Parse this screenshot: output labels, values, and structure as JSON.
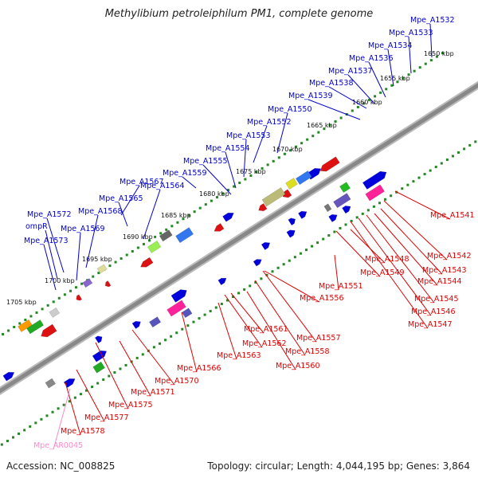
{
  "title": "Methylibium petroleiphilum PM1, complete genome",
  "footer": {
    "accession": "Accession: NC_008825",
    "topology": "Topology: circular; Length: 4,044,195 bp; Genes: 3,864"
  },
  "colors": {
    "forward_label": "#0000cc",
    "reverse_label": "#dd0000",
    "rna_label": "#ff88cc",
    "backbone": "#888888",
    "ticks": "#228822"
  },
  "ticks": [
    "1650 kbp",
    "1655 kbp",
    "1660 kbp",
    "1665 kbp",
    "1670 kbp",
    "1675 kbp",
    "1680 kbp",
    "1685 kbp",
    "1690 kbp",
    "1695 kbp",
    "1700 kbp",
    "1705 kbp"
  ],
  "forward_labels": [
    "Mpe_A1532",
    "Mpe_A1533",
    "Mpe_A1534",
    "Mpe_A1536",
    "Mpe_A1537",
    "Mpe_A1538",
    "Mpe_A1539",
    "Mpe_A1550",
    "Mpe_A1552",
    "Mpe_A1553",
    "Mpe_A1554",
    "Mpe_A1555",
    "Mpe_A1559",
    "Mpe_A1567",
    "Mpe_A1565",
    "Mpe_A1564",
    "Mpe_A1568",
    "Mpe_A1569",
    "Mpe_A1572",
    "ompR",
    "Mpe_A1573"
  ],
  "reverse_labels": [
    "Mpe_A1541",
    "Mpe_A1542",
    "Mpe_A1543",
    "Mpe_A1544",
    "Mpe_A1545",
    "Mpe_A1546",
    "Mpe_A1547",
    "Mpe_A1548",
    "Mpe_A1549",
    "Mpe_A1551",
    "Mpe_A1556",
    "Mpe_A1557",
    "Mpe_A1558",
    "Mpe_A1560",
    "Mpe_A1561",
    "Mpe_A1562",
    "Mpe_A1563",
    "Mpe_A1566",
    "Mpe_A1570",
    "Mpe_A1571",
    "Mpe_A1575",
    "Mpe_A1577",
    "Mpe_A1578"
  ],
  "rna_labels": [
    "Mpe_AR0045"
  ]
}
